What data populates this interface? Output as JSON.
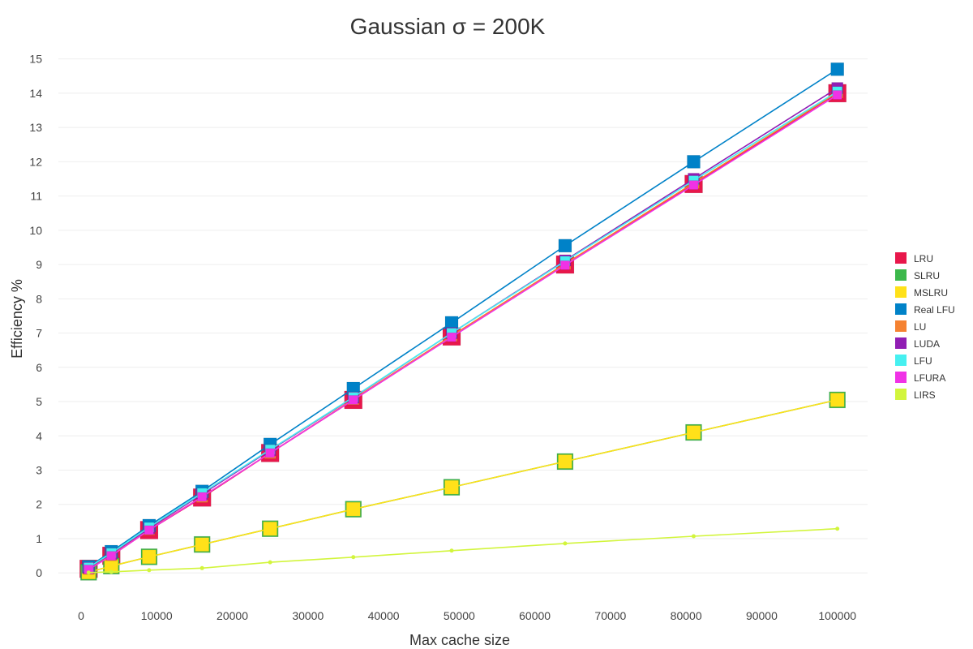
{
  "chart_data": {
    "type": "line",
    "title": "Gaussian σ = 200K",
    "xlabel": "Max cache size",
    "ylabel": "Efficiency %",
    "xlim": [
      -3000,
      104000
    ],
    "ylim": [
      -0.8,
      15.3
    ],
    "xticks": [
      0,
      10000,
      20000,
      30000,
      40000,
      50000,
      60000,
      70000,
      80000,
      90000,
      100000
    ],
    "xtick_labels": [
      "0",
      "10000",
      "20000",
      "30000",
      "40000",
      "50000",
      "60000",
      "70000",
      "80000",
      "90000",
      "100000"
    ],
    "yticks": [
      0,
      1,
      2,
      3,
      4,
      5,
      6,
      7,
      8,
      9,
      10,
      11,
      12,
      13,
      14,
      15
    ],
    "ytick_labels": [
      "0",
      "1",
      "2",
      "3",
      "4",
      "5",
      "6",
      "7",
      "8",
      "9",
      "10",
      "11",
      "12",
      "13",
      "14",
      "15"
    ],
    "grid": "horizontal",
    "legend_position": "right",
    "x": [
      1000,
      4000,
      9000,
      16000,
      25000,
      36000,
      49000,
      64000,
      81000,
      100000
    ],
    "series": [
      {
        "name": "LRU",
        "color": "#e8174b",
        "marker": "square",
        "size": 11,
        "values": [
          0.12,
          0.5,
          1.25,
          2.2,
          3.5,
          5.05,
          6.9,
          9.0,
          11.35,
          14.0
        ]
      },
      {
        "name": "SLRU",
        "color": "#3cb84b",
        "marker": "square",
        "size": 10,
        "values": [
          0.02,
          0.2,
          0.47,
          0.83,
          1.29,
          1.86,
          2.5,
          3.25,
          4.1,
          5.05
        ]
      },
      {
        "name": "MSLRU",
        "color": "#ffe119",
        "marker": "square",
        "size": 8.5,
        "values": [
          0.02,
          0.2,
          0.47,
          0.83,
          1.29,
          1.86,
          2.5,
          3.25,
          4.1,
          5.05
        ]
      },
      {
        "name": "Real LFU",
        "color": "#0082c8",
        "marker": "square",
        "size": 8,
        "values": [
          0.18,
          0.62,
          1.38,
          2.38,
          3.75,
          5.38,
          7.3,
          9.55,
          12.0,
          14.7
        ]
      },
      {
        "name": "LU",
        "color": "#f58231",
        "marker": "square",
        "size": 7,
        "values": [
          0.12,
          0.52,
          1.27,
          2.22,
          3.5,
          5.07,
          6.92,
          9.02,
          11.38,
          14.02
        ]
      },
      {
        "name": "LUDA",
        "color": "#911eb4",
        "marker": "square",
        "size": 7,
        "values": [
          0.15,
          0.56,
          1.3,
          2.3,
          3.58,
          5.12,
          7.0,
          9.12,
          11.5,
          14.15
        ]
      },
      {
        "name": "LFU",
        "color": "#46f0f0",
        "marker": "square",
        "size": 6,
        "values": [
          0.16,
          0.58,
          1.33,
          2.33,
          3.6,
          5.13,
          7.0,
          9.1,
          11.45,
          14.05
        ]
      },
      {
        "name": "LFURA",
        "color": "#f032e6",
        "marker": "square",
        "size": 5.5,
        "values": [
          0.1,
          0.5,
          1.25,
          2.22,
          3.5,
          5.05,
          6.88,
          8.98,
          11.32,
          13.95
        ]
      },
      {
        "name": "LIRS",
        "color": "#d2f53c",
        "marker": "circle",
        "size": 2.5,
        "values": [
          0.01,
          0.03,
          0.08,
          0.14,
          0.31,
          0.46,
          0.65,
          0.86,
          1.07,
          1.29
        ]
      }
    ]
  }
}
